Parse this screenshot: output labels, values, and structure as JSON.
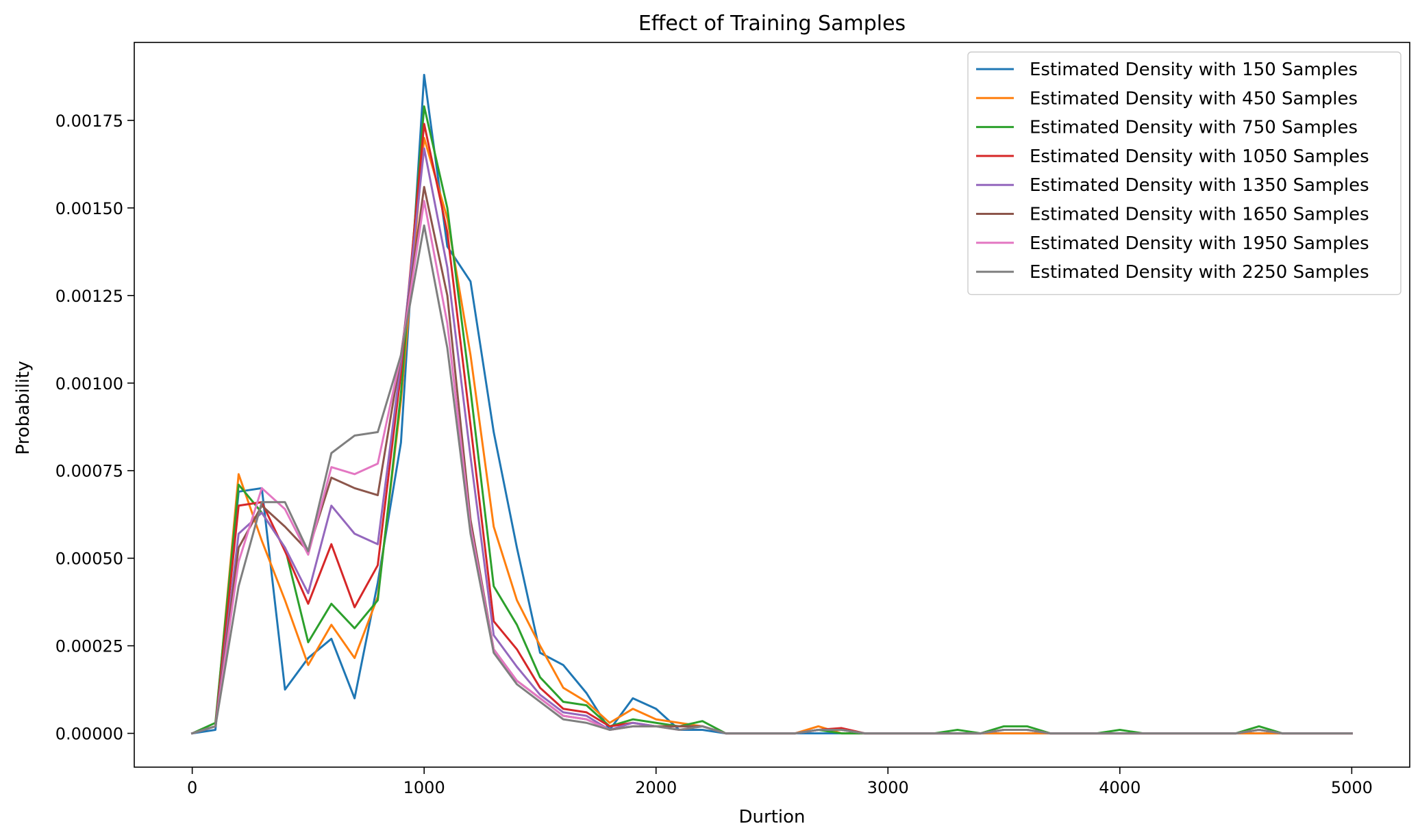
{
  "chart_data": {
    "type": "line",
    "title": "Effect of Training Samples",
    "xlabel": "Durtion",
    "ylabel": "Probability",
    "xlim": [
      -250,
      5250
    ],
    "ylim": [
      -9.65e-05,
      0.0019725
    ],
    "xticks": [
      0,
      1000,
      2000,
      3000,
      4000,
      5000
    ],
    "xtick_labels": [
      "0",
      "1000",
      "2000",
      "3000",
      "4000",
      "5000"
    ],
    "yticks": [
      0,
      0.00025,
      0.0005,
      0.00075,
      0.001,
      0.00125,
      0.0015,
      0.00175
    ],
    "ytick_labels": [
      "0.00000",
      "0.00025",
      "0.00050",
      "0.00075",
      "0.00100",
      "0.00125",
      "0.00150",
      "0.00175"
    ],
    "grid": false,
    "legend_position": "top-right",
    "x": [
      0,
      100,
      200,
      300,
      400,
      500,
      600,
      700,
      800,
      900,
      1000,
      1100,
      1200,
      1300,
      1400,
      1500,
      1600,
      1700,
      1800,
      1900,
      2000,
      2100,
      2200,
      2300,
      2400,
      2500,
      2600,
      2700,
      2800,
      2900,
      3000,
      3100,
      3200,
      3300,
      3400,
      3500,
      3600,
      3700,
      3800,
      3900,
      4000,
      4100,
      4200,
      4300,
      4400,
      4500,
      4600,
      4700,
      4800,
      4900,
      5000
    ],
    "series": [
      {
        "name": "Estimated Density with 150 Samples",
        "color": "#1f77b4",
        "values": [
          0,
          1e-05,
          0.00069,
          0.0007,
          0.000125,
          0.000215,
          0.00027,
          0.0001,
          0.00043,
          0.00083,
          0.00188,
          0.00139,
          0.00129,
          0.00086,
          0.00053,
          0.00023,
          0.000195,
          0.000115,
          1e-05,
          0.0001,
          7e-05,
          1e-05,
          1e-05,
          0,
          0,
          0,
          0,
          0,
          0,
          0,
          0,
          0,
          0,
          0,
          0,
          0,
          0,
          0,
          0,
          0,
          0,
          0,
          0,
          0,
          0,
          0,
          0,
          0,
          0,
          0,
          0
        ]
      },
      {
        "name": "Estimated Density with 450 Samples",
        "color": "#ff7f0e",
        "values": [
          0,
          2e-05,
          0.00074,
          0.00055,
          0.00038,
          0.000195,
          0.00031,
          0.000215,
          0.00039,
          0.00095,
          0.0017,
          0.00147,
          0.00108,
          0.00059,
          0.00038,
          0.00025,
          0.00013,
          9e-05,
          3e-05,
          7e-05,
          4e-05,
          3e-05,
          2e-05,
          0,
          0,
          0,
          0,
          2e-05,
          0,
          0,
          0,
          0,
          0,
          0,
          0,
          0,
          0,
          0,
          0,
          0,
          0,
          0,
          0,
          0,
          0,
          0,
          0,
          0,
          0,
          0,
          0
        ]
      },
      {
        "name": "Estimated Density with 750 Samples",
        "color": "#2ca02c",
        "values": [
          0,
          3e-05,
          0.00071,
          0.00063,
          0.00053,
          0.00026,
          0.00037,
          0.0003,
          0.00038,
          0.00097,
          0.00179,
          0.0015,
          0.00098,
          0.00042,
          0.00031,
          0.00016,
          9e-05,
          8e-05,
          2e-05,
          4e-05,
          3e-05,
          2e-05,
          3.5e-05,
          0,
          0,
          0,
          0,
          1e-05,
          0,
          0,
          0,
          0,
          0,
          1e-05,
          0,
          2e-05,
          2e-05,
          0,
          0,
          0,
          1e-05,
          0,
          0,
          0,
          0,
          0,
          2e-05,
          0,
          0,
          0,
          0
        ]
      },
      {
        "name": "Estimated Density with 1050 Samples",
        "color": "#d62728",
        "values": [
          0,
          2e-05,
          0.00065,
          0.00066,
          0.00052,
          0.00037,
          0.00054,
          0.00036,
          0.00048,
          0.00103,
          0.00174,
          0.00143,
          0.00088,
          0.00032,
          0.00024,
          0.00013,
          7e-05,
          6e-05,
          2e-05,
          3e-05,
          2e-05,
          2e-05,
          2e-05,
          0,
          0,
          0,
          0,
          1e-05,
          1.5e-05,
          0,
          0,
          0,
          0,
          0,
          0,
          1e-05,
          1e-05,
          0,
          0,
          0,
          0,
          0,
          0,
          0,
          0,
          0,
          1e-05,
          0,
          0,
          0,
          0
        ]
      },
      {
        "name": "Estimated Density with 1350 Samples",
        "color": "#9467bd",
        "values": [
          0,
          2e-05,
          0.00057,
          0.00063,
          0.00053,
          0.0004,
          0.00065,
          0.00057,
          0.00054,
          0.00106,
          0.00167,
          0.00133,
          0.00079,
          0.00028,
          0.00019,
          0.00011,
          6e-05,
          5e-05,
          1e-05,
          3e-05,
          2e-05,
          2e-05,
          2e-05,
          0,
          0,
          0,
          0,
          1e-05,
          1e-05,
          0,
          0,
          0,
          0,
          0,
          0,
          1e-05,
          1e-05,
          0,
          0,
          0,
          0,
          0,
          0,
          0,
          0,
          0,
          1e-05,
          0,
          0,
          0,
          0
        ]
      },
      {
        "name": "Estimated Density with 1650 Samples",
        "color": "#8c564b",
        "values": [
          0,
          2e-05,
          0.00053,
          0.00065,
          0.00059,
          0.00052,
          0.00073,
          0.0007,
          0.00068,
          0.00108,
          0.00156,
          0.00125,
          0.00061,
          0.00024,
          0.00015,
          0.0001,
          5e-05,
          4e-05,
          1e-05,
          2e-05,
          2e-05,
          2e-05,
          2e-05,
          0,
          0,
          0,
          0,
          1e-05,
          1e-05,
          0,
          0,
          0,
          0,
          0,
          0,
          1e-05,
          1e-05,
          0,
          0,
          0,
          0,
          0,
          0,
          0,
          0,
          0,
          1e-05,
          0,
          0,
          0,
          0
        ]
      },
      {
        "name": "Estimated Density with 1950 Samples",
        "color": "#e377c2",
        "values": [
          0,
          2e-05,
          0.00049,
          0.0007,
          0.00064,
          0.00051,
          0.00076,
          0.00074,
          0.00077,
          0.00108,
          0.00152,
          0.00117,
          0.00059,
          0.00024,
          0.00015,
          0.0001,
          5e-05,
          4e-05,
          1e-05,
          2e-05,
          2e-05,
          1e-05,
          2e-05,
          0,
          0,
          0,
          0,
          1e-05,
          1e-05,
          0,
          0,
          0,
          0,
          0,
          0,
          1e-05,
          1e-05,
          0,
          0,
          0,
          0,
          0,
          0,
          0,
          0,
          0,
          1e-05,
          0,
          0,
          0,
          0
        ]
      },
      {
        "name": "Estimated Density with 2250 Samples",
        "color": "#7f7f7f",
        "values": [
          0,
          2e-05,
          0.00042,
          0.00066,
          0.00066,
          0.00052,
          0.0008,
          0.00085,
          0.00086,
          0.00108,
          0.00145,
          0.0011,
          0.00057,
          0.00023,
          0.00014,
          9e-05,
          4e-05,
          3e-05,
          1e-05,
          2e-05,
          2e-05,
          1e-05,
          2e-05,
          0,
          0,
          0,
          0,
          1e-05,
          1e-05,
          0,
          0,
          0,
          0,
          0,
          0,
          1e-05,
          1e-05,
          0,
          0,
          0,
          0,
          0,
          0,
          0,
          0,
          0,
          1e-05,
          0,
          0,
          0,
          0
        ]
      }
    ]
  }
}
